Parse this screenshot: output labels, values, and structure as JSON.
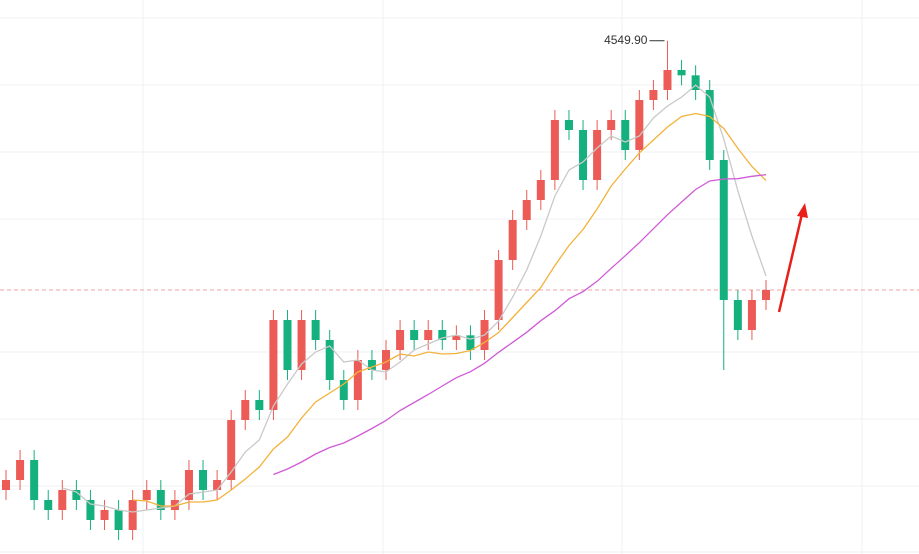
{
  "chart_data": {
    "type": "candlestick",
    "ylim": [
      3780,
      4611
    ],
    "up_color": "#ec5b56",
    "down_color": "#14b07d",
    "open": [
      3876,
      3891,
      3921,
      3861,
      3846,
      3876,
      3861,
      3831,
      3846,
      3816,
      3861,
      3876,
      3846,
      3861,
      3906,
      3876,
      3891,
      3981,
      4011,
      3996,
      4131,
      4056,
      4131,
      4101,
      4041,
      4011,
      4071,
      4056,
      4086,
      4116,
      4101,
      4116,
      4101,
      4108,
      4086,
      4131,
      4221,
      4281,
      4311,
      4341,
      4431,
      4416,
      4341,
      4416,
      4431,
      4386,
      4461,
      4476,
      4506,
      4498,
      4476,
      4371,
      4161,
      4116,
      4161
    ],
    "high": [
      3906,
      3936,
      3936,
      3876,
      3891,
      3891,
      3876,
      3861,
      3861,
      3876,
      3891,
      3891,
      3876,
      3921,
      3921,
      3906,
      3996,
      4026,
      4026,
      4146,
      4146,
      4146,
      4146,
      4116,
      4056,
      4086,
      4086,
      4101,
      4131,
      4131,
      4131,
      4131,
      4123,
      4123,
      4146,
      4236,
      4296,
      4326,
      4356,
      4446,
      4446,
      4431,
      4431,
      4446,
      4446,
      4476,
      4491,
      4549.9,
      4521,
      4513,
      4491,
      4386,
      4176,
      4176,
      4191
    ],
    "low": [
      3861,
      3876,
      3846,
      3831,
      3831,
      3846,
      3816,
      3816,
      3801,
      3801,
      3846,
      3831,
      3831,
      3846,
      3861,
      3861,
      3876,
      3966,
      3981,
      3981,
      4041,
      4041,
      4086,
      4026,
      3996,
      3996,
      4041,
      4041,
      4071,
      4086,
      4086,
      4086,
      4086,
      4071,
      4071,
      4116,
      4206,
      4266,
      4296,
      4326,
      4401,
      4326,
      4326,
      4401,
      4371,
      4371,
      4446,
      4461,
      4483,
      4461,
      4356,
      4056,
      4101,
      4101,
      4146
    ],
    "close": [
      3891,
      3921,
      3861,
      3846,
      3876,
      3861,
      3831,
      3846,
      3816,
      3861,
      3876,
      3846,
      3861,
      3906,
      3876,
      3891,
      3981,
      4011,
      3996,
      4131,
      4056,
      4131,
      4101,
      4041,
      4011,
      4071,
      4056,
      4086,
      4116,
      4101,
      4116,
      4101,
      4108,
      4086,
      4131,
      4221,
      4281,
      4311,
      4341,
      4431,
      4416,
      4341,
      4416,
      4431,
      4386,
      4461,
      4476,
      4506,
      4498,
      4476,
      4371,
      4161,
      4116,
      4161,
      4176
    ],
    "series": [
      {
        "color": "#c9c9c9",
        "values": [
          null,
          null,
          null,
          null,
          3879,
          3873,
          3855,
          3852,
          3846,
          3843,
          3846,
          3849,
          3852,
          3870,
          3873,
          3876,
          3903,
          3933,
          3951,
          4002,
          4035,
          4065,
          4083,
          4092,
          4068,
          4071,
          4056,
          4053,
          4068,
          4086,
          4095,
          4104,
          4108.4,
          4102.4,
          4108.4,
          4129.4,
          4165.4,
          4206,
          4257,
          4317,
          4356,
          4368,
          4389,
          4407,
          4398,
          4407,
          4434,
          4452,
          4465.4,
          4483.4,
          4465.4,
          4402.4,
          4324.4,
          4257,
          4197
        ]
      },
      {
        "color": "#f3b23a",
        "values": [
          null,
          null,
          null,
          null,
          null,
          null,
          null,
          null,
          null,
          3861,
          3859.5,
          3852,
          3852,
          3858,
          3858,
          3861,
          3876,
          3892.5,
          3910.5,
          3937.5,
          3955.5,
          3984,
          4008,
          4021.5,
          4035,
          4053,
          4060.5,
          4068,
          4080,
          4077,
          4083,
          4080,
          4080.7,
          4085.2,
          4097.2,
          4112.2,
          4134.7,
          4157.2,
          4179.7,
          4212.7,
          4242.7,
          4266.7,
          4297.5,
          4332,
          4357.5,
          4381.5,
          4401,
          4420.5,
          4436.2,
          4440.7,
          4436.2,
          4418.2,
          4388.2,
          4361.2,
          4340.2
        ]
      },
      {
        "color": "#cf5bd6",
        "values": [
          null,
          null,
          null,
          null,
          null,
          null,
          null,
          null,
          null,
          null,
          null,
          null,
          null,
          null,
          null,
          null,
          null,
          null,
          null,
          3899.3,
          3907.5,
          3918,
          3930,
          3939.8,
          3946.5,
          3957,
          3968.3,
          3980.3,
          3995.3,
          4007.3,
          4019.3,
          4032,
          4044.4,
          4053.4,
          4066.1,
          4082.6,
          4097.6,
          4112.6,
          4129.9,
          4144.9,
          4162.9,
          4173.4,
          4189.1,
          4208.6,
          4227.4,
          4246.9,
          4267.9,
          4288.9,
          4308,
          4326.7,
          4339.5,
          4342.5,
          4342.9,
          4346.6,
          4348.9
        ]
      }
    ],
    "annotations": [
      {
        "text": "4549.90",
        "index": 47
      }
    ]
  }
}
